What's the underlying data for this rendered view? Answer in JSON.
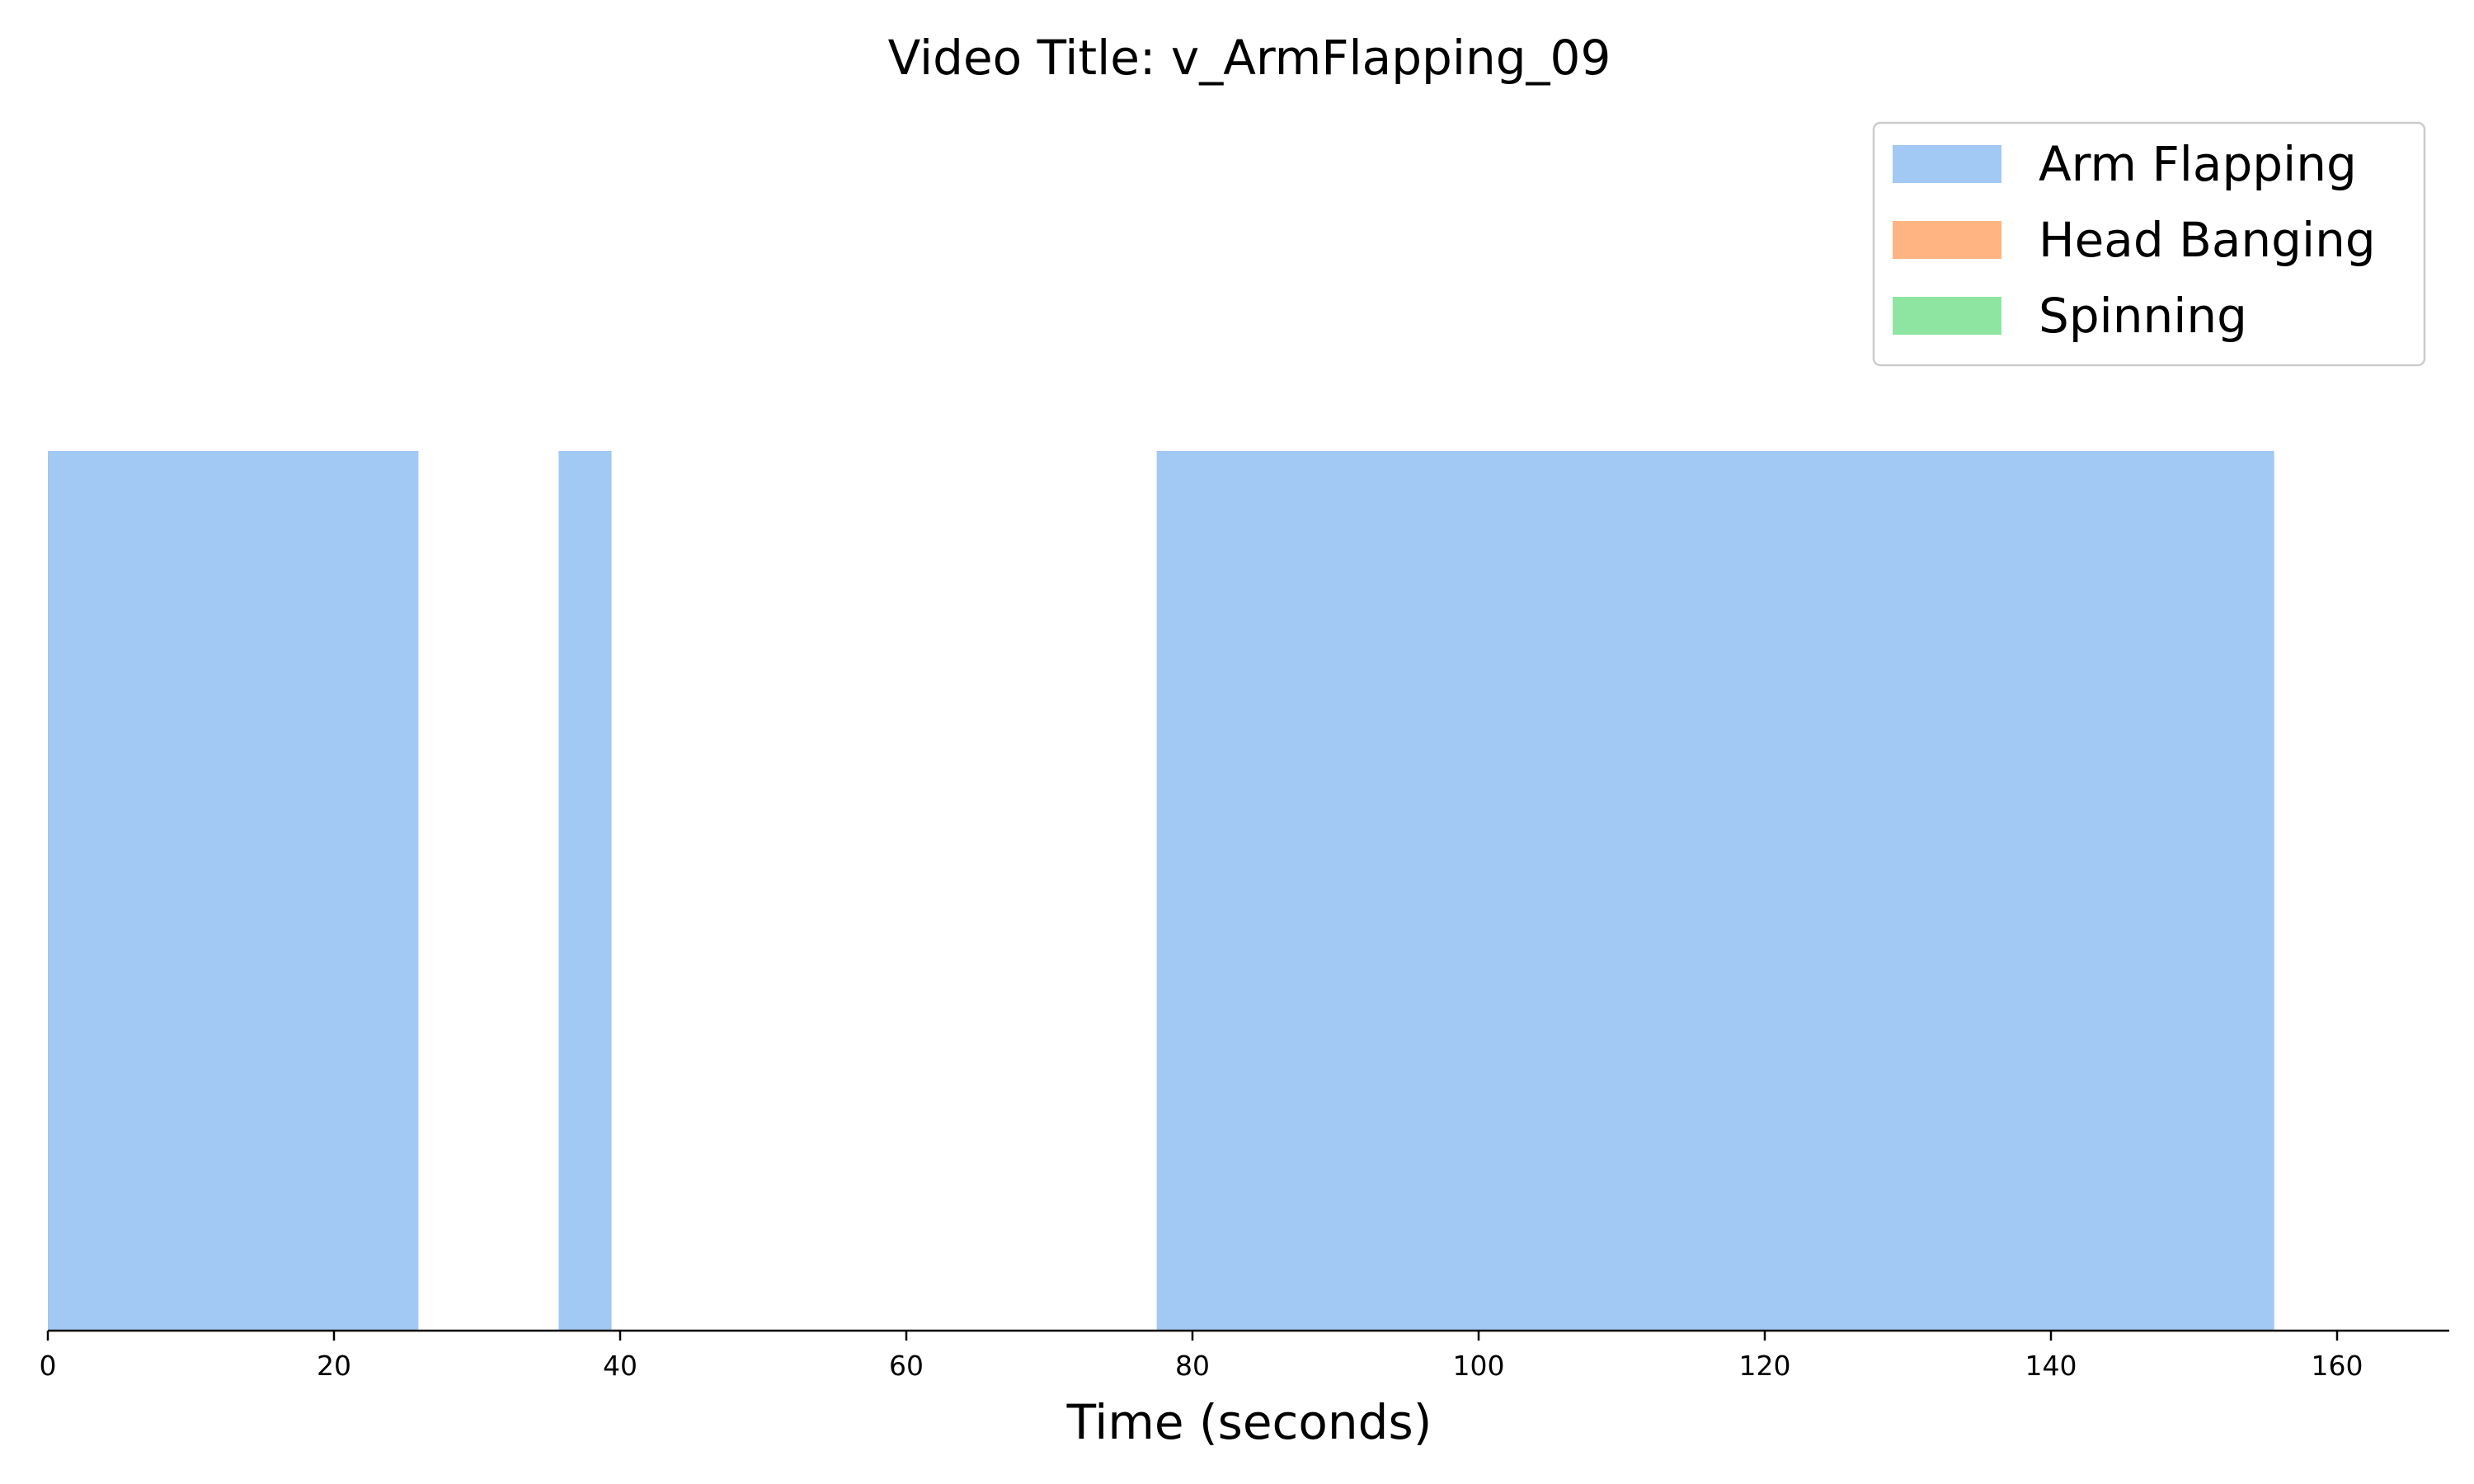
{
  "chart_data": {
    "type": "bar",
    "subtype": "timeline-segments",
    "title": "Video Title: v_ArmFlapping_09",
    "xlabel": "Time (seconds)",
    "ylabel": "",
    "xlim": [
      0,
      168
    ],
    "xticks": [
      0,
      20,
      40,
      60,
      80,
      100,
      120,
      140,
      160
    ],
    "grid": false,
    "legend_position": "top-right",
    "series": [
      {
        "name": "Arm Flapping",
        "color": "#a1c9f4",
        "segments": [
          {
            "start": 0,
            "end": 25.9
          },
          {
            "start": 35.7,
            "end": 39.4
          },
          {
            "start": 77.5,
            "end": 155.6
          }
        ]
      },
      {
        "name": "Head Banging",
        "color": "#ffb482",
        "segments": []
      },
      {
        "name": "Spinning",
        "color": "#8de5a1",
        "segments": []
      }
    ]
  }
}
